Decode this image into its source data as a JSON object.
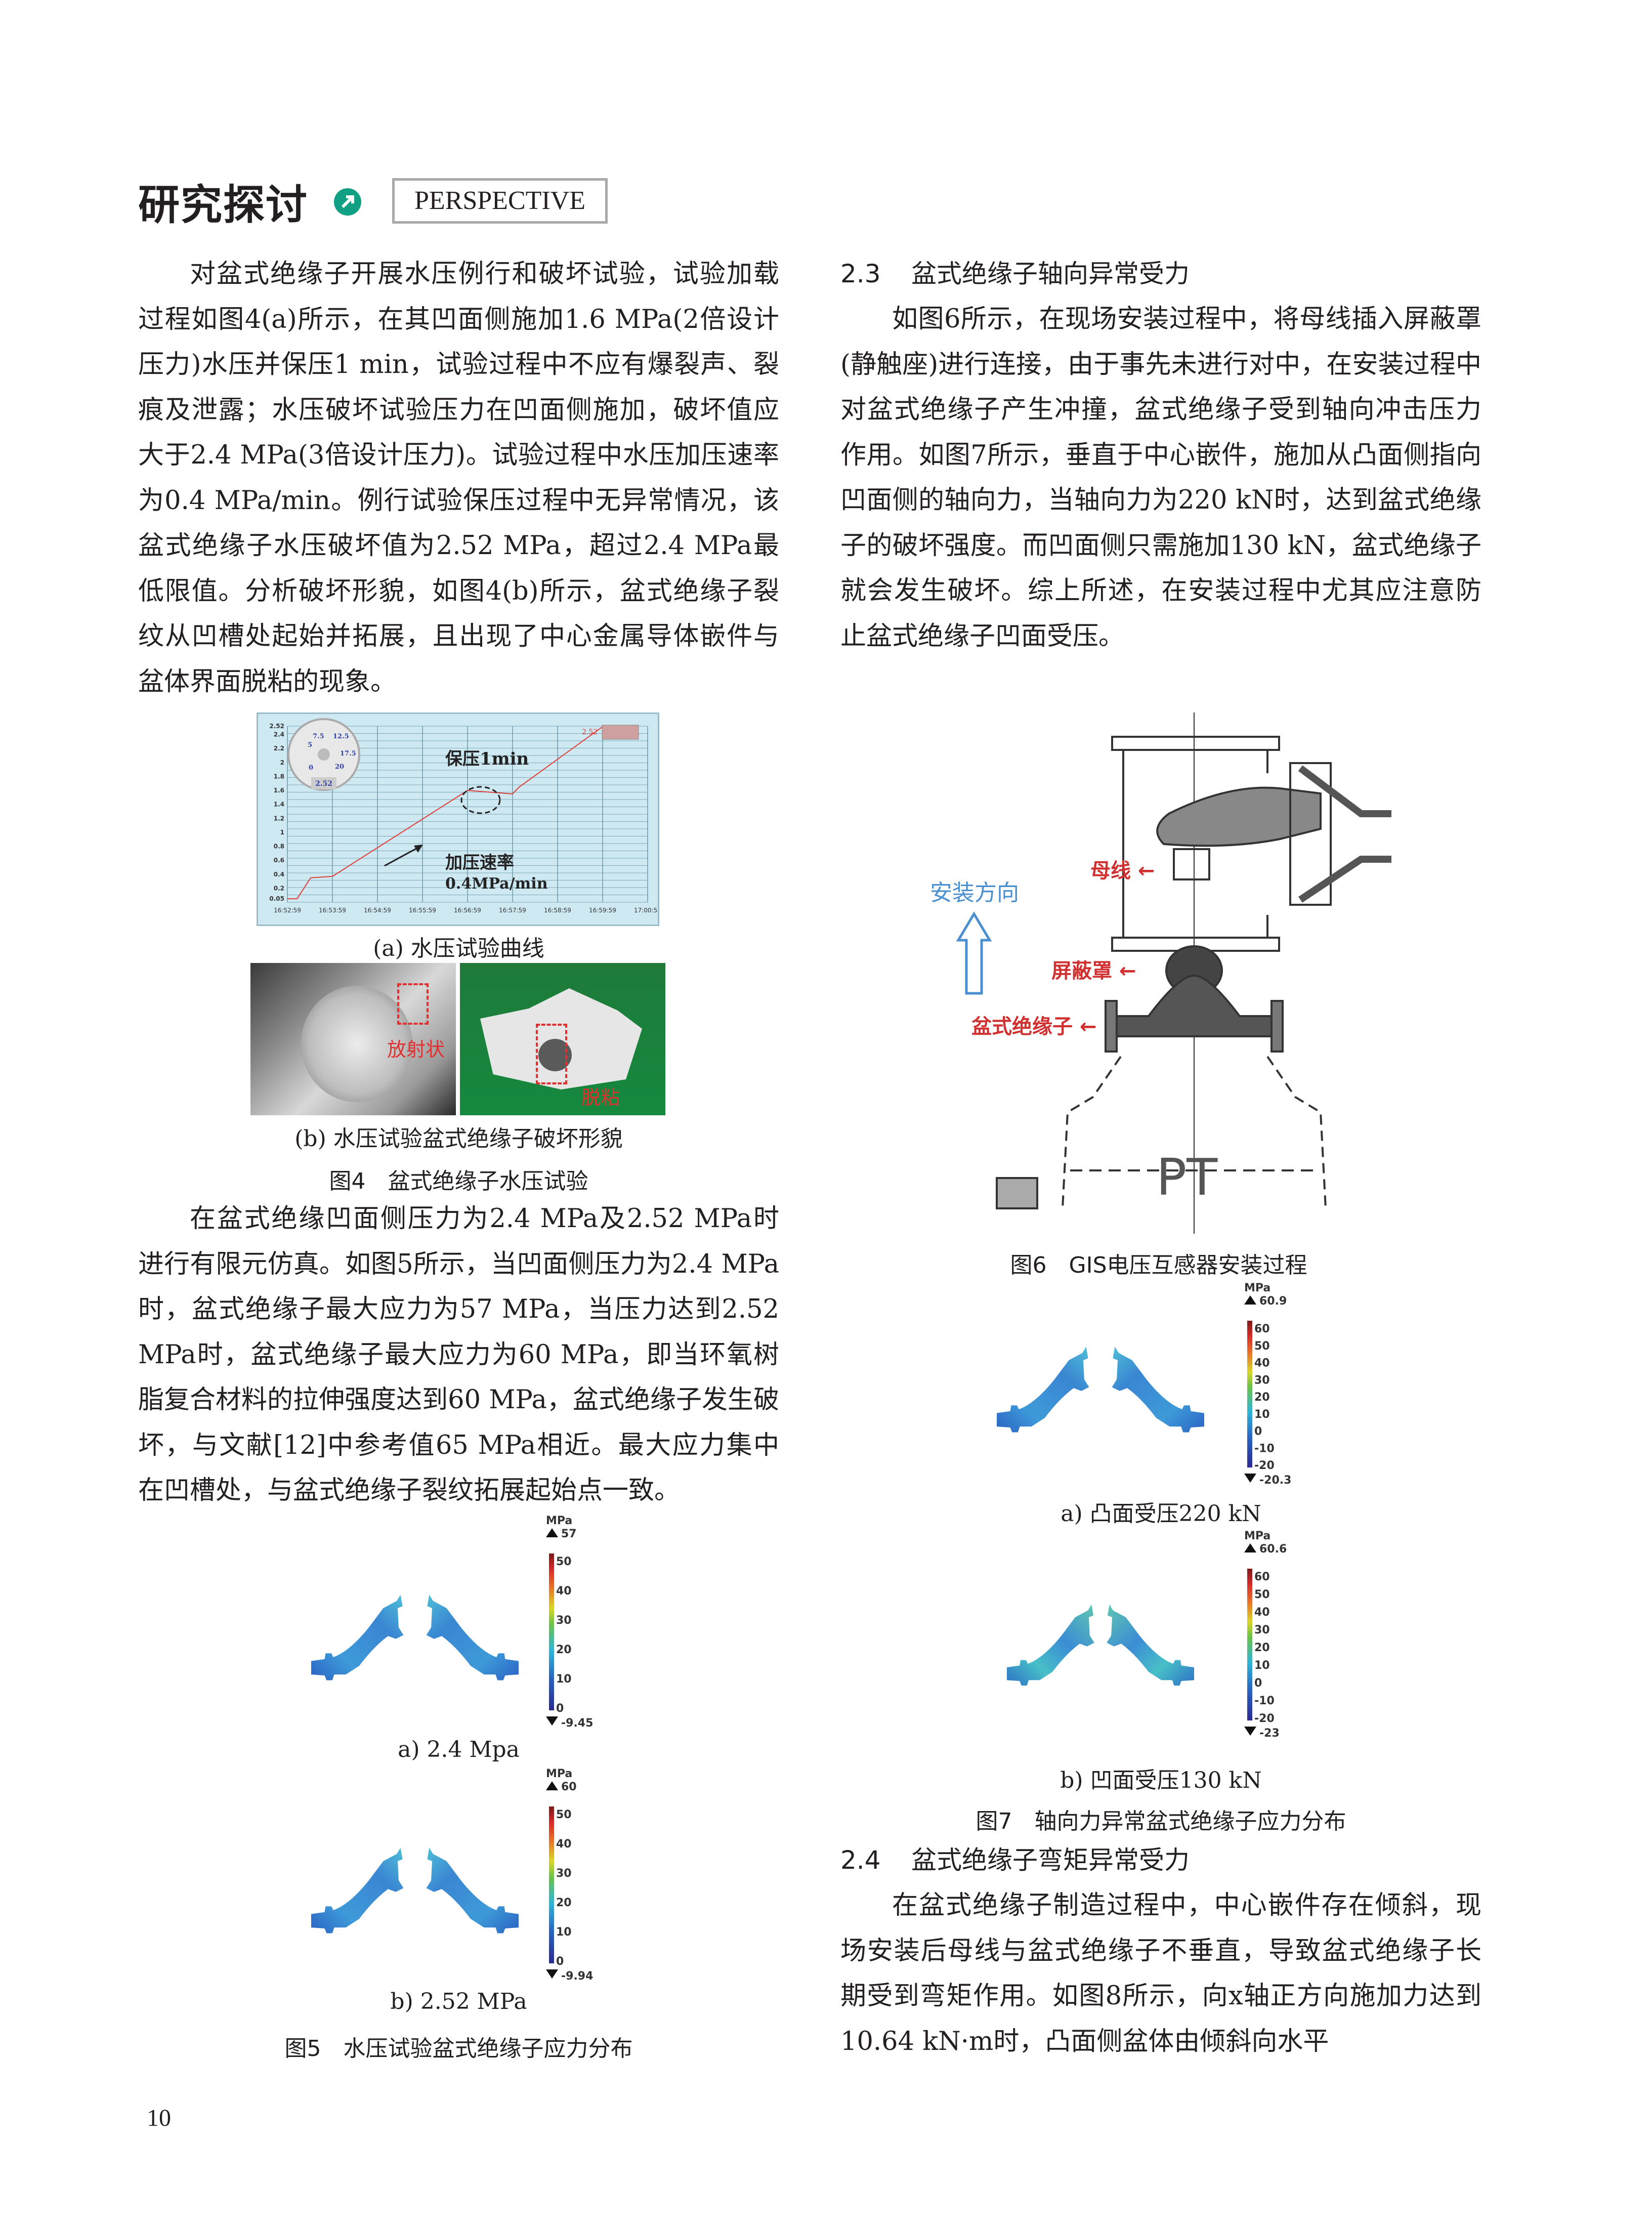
{
  "header": {
    "section_title": "研究探讨",
    "section_en": "PERSPECTIVE",
    "icon": "arrow-up-right-icon",
    "accent": "#12a085"
  },
  "left": {
    "p1": "对盆式绝缘子开展水压例行和破坏试验，试验加载过程如图4(a)所示，在其凹面侧施加1.6 MPa(2倍设计压力)水压并保压1 min，试验过程中不应有爆裂声、裂痕及泄露；水压破坏试验压力在凹面侧施加，破坏值应大于2.4 MPa(3倍设计压力)。试验过程中水压加压速率为0.4 MPa/min。例行试验保压过程中无异常情况，该盆式绝缘子水压破坏值为2.52 MPa，超过2.4 MPa最低限值。分析破坏形貌，如图4(b)所示，盆式绝缘子裂纹从凹槽处起始并拓展，且出现了中心金属导体嵌件与盆体界面脱粘的现象。",
    "p2": "在盆式绝缘凹面侧压力为2.4 MPa及2.52 MPa时进行有限元仿真。如图5所示，当凹面侧压力为2.4 MPa时，盆式绝缘子最大应力为57 MPa，当压力达到2.52 MPa时，盆式绝缘子最大应力为60 MPa，即当环氧树脂复合材料的拉伸强度达到60 MPa，盆式绝缘子发生破坏，与文献[12]中参考值65 MPa相近。最大应力集中在凹槽处，与盆式绝缘子裂纹拓展起始点一致。"
  },
  "fig4": {
    "cap_a": "(a) 水压试验曲线",
    "cap_b": "(b) 水压试验盆式绝缘子破坏形貌",
    "title": "图4　盆式绝缘子水压试验",
    "label_radial": "放射状",
    "label_debond": "脱粘",
    "annot_hold": "保压1min",
    "annot_rate_1": "加压速率",
    "annot_rate_2": "0.4MPa/min",
    "gauge": {
      "ticks": [
        "0",
        "5",
        "7.5",
        "12.5",
        "17.5",
        "20"
      ],
      "readout": "2.52"
    },
    "readout_value": "2.52"
  },
  "chart_data": {
    "type": "line",
    "yticks": [
      "0.05",
      "0.2",
      "0.4",
      "0.6",
      "0.8",
      "1",
      "1.2",
      "1.4",
      "1.6",
      "1.8",
      "2",
      "2.2",
      "2.4",
      "2.52"
    ],
    "xticks": [
      "16:52:59",
      "16:53:59",
      "16:54:59",
      "16:55:59",
      "16:56:59",
      "16:57:59",
      "16:58:59",
      "16:59:59",
      "17:00:59"
    ],
    "ylim": [
      0,
      2.52
    ],
    "xlim": [
      "16:52:59",
      "17:00:59"
    ],
    "grid": true,
    "series": [
      {
        "color": "#e0403a",
        "points": [
          [
            "16:52:59",
            0.05
          ],
          [
            "16:53:12",
            0.05
          ],
          [
            "16:53:30",
            0.35
          ],
          [
            "16:53:59",
            0.37
          ],
          [
            "16:56:59",
            1.6
          ],
          [
            "16:57:59",
            1.55
          ],
          [
            "16:58:08",
            1.65
          ],
          [
            "17:00:00",
            2.52
          ]
        ]
      }
    ]
  },
  "fig5": {
    "a": {
      "unit": "MPa",
      "max": "57",
      "min": "-9.45",
      "ticks": [
        "50",
        "40",
        "30",
        "20",
        "10",
        "0"
      ],
      "caption": "a) 2.4 Mpa"
    },
    "b": {
      "unit": "MPa",
      "max": "60",
      "min": "-9.94",
      "ticks": [
        "50",
        "40",
        "30",
        "20",
        "10",
        "0"
      ],
      "caption": "b) 2.52 MPa"
    },
    "title": "图5　水压试验盆式绝缘子应力分布"
  },
  "right": {
    "h23_num": "2.3",
    "h23_text": "盆式绝缘子轴向异常受力",
    "p23": "如图6所示，在现场安装过程中，将母线插入屏蔽罩(静触座)进行连接，由于事先未进行对中，在安装过程中对盆式绝缘子产生冲撞，盆式绝缘子受到轴向冲击压力作用。如图7所示，垂直于中心嵌件，施加从凸面侧指向凹面侧的轴向力，当轴向力为220 kN时，达到盆式绝缘子的破坏强度。而凹面侧只需施加130 kN，盆式绝缘子就会发生破坏。综上所述，在安装过程中尤其应注意防止盆式绝缘子凹面受压。",
    "h24_num": "2.4",
    "h24_text": "盆式绝缘子弯矩异常受力",
    "p24": "在盆式绝缘子制造过程中，中心嵌件存在倾斜，现场安装后母线与盆式绝缘子不垂直，导致盆式绝缘子长期受到弯矩作用。如图8所示，向x轴正方向施加力达到10.64 kN·m时，凸面侧盆体由倾斜向水平"
  },
  "fig6": {
    "dir": "安装方向",
    "busbar": "母线",
    "shield": "屏蔽罩",
    "insulator": "盆式绝缘子",
    "pt": "PT",
    "title": "图6　GIS电压互感器安装过程"
  },
  "fig7": {
    "a": {
      "unit": "MPa",
      "max": "60.9",
      "min": "-20.3",
      "ticks": [
        "60",
        "50",
        "40",
        "30",
        "20",
        "10",
        "0",
        "-10",
        "-20"
      ],
      "caption": "a) 凸面受压220 kN"
    },
    "b": {
      "unit": "MPa",
      "max": "60.6",
      "min": "-23",
      "ticks": [
        "60",
        "50",
        "40",
        "30",
        "20",
        "10",
        "0",
        "-10",
        "-20"
      ],
      "caption": "b) 凹面受压130 kN"
    },
    "title": "图7　轴向力异常盆式绝缘子应力分布"
  },
  "footer": {
    "page_number": "10"
  }
}
